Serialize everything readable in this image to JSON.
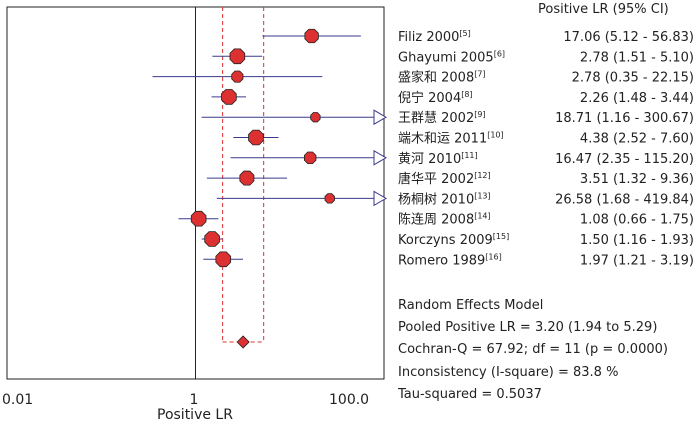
{
  "chart_data": {
    "type": "forest",
    "x_scale": "log10",
    "xlim": [
      0.01,
      100.0
    ],
    "x_ticks": [
      "0.01",
      "1",
      "100.0"
    ],
    "xlabel": "Positive LR",
    "column_header": "Positive LR (95% CI)",
    "studies": [
      {
        "name": "Filiz 2000",
        "ref": "[5]",
        "lr": 17.06,
        "lo": 5.12,
        "hi": 56.83,
        "ci_text": "17.06 (5.12 - 56.83)",
        "arrow": false
      },
      {
        "name": "Ghayumi 2005",
        "ref": "[6]",
        "lr": 2.78,
        "lo": 1.51,
        "hi": 5.1,
        "ci_text": "2.78 (1.51 - 5.10)",
        "arrow": false
      },
      {
        "name": "盛家和 2008",
        "ref": "[7]",
        "lr": 2.78,
        "lo": 0.35,
        "hi": 22.15,
        "ci_text": "2.78 (0.35 - 22.15)",
        "arrow": false
      },
      {
        "name": "倪宁 2004",
        "ref": "[8]",
        "lr": 2.26,
        "lo": 1.48,
        "hi": 3.44,
        "ci_text": "2.26 (1.48 - 3.44)",
        "arrow": false
      },
      {
        "name": "王群慧 2002",
        "ref": "[9]",
        "lr": 18.71,
        "lo": 1.16,
        "hi": 300.67,
        "ci_text": "18.71 (1.16 - 300.67)",
        "arrow": true
      },
      {
        "name": "端木和运 2011",
        "ref": "[10]",
        "lr": 4.38,
        "lo": 2.52,
        "hi": 7.6,
        "ci_text": "4.38 (2.52 - 7.60)",
        "arrow": false
      },
      {
        "name": "黄河 2010",
        "ref": "[11]",
        "lr": 16.47,
        "lo": 2.35,
        "hi": 115.2,
        "ci_text": "16.47 (2.35 - 115.20)",
        "arrow": true
      },
      {
        "name": "唐华平 2002",
        "ref": "[12]",
        "lr": 3.51,
        "lo": 1.32,
        "hi": 9.36,
        "ci_text": "3.51 (1.32 - 9.36)",
        "arrow": false
      },
      {
        "name": "杨桐树 2010",
        "ref": "[13]",
        "lr": 26.58,
        "lo": 1.68,
        "hi": 419.84,
        "ci_text": "26.58 (1.68 - 419.84)",
        "arrow": true
      },
      {
        "name": "陈连周 2008",
        "ref": "[14]",
        "lr": 1.08,
        "lo": 0.66,
        "hi": 1.75,
        "ci_text": "1.08 (0.66 - 1.75)",
        "arrow": false
      },
      {
        "name": "Korczyns 2009",
        "ref": "[15]",
        "lr": 1.5,
        "lo": 1.16,
        "hi": 1.93,
        "ci_text": "1.50 (1.16 - 1.93)",
        "arrow": false
      },
      {
        "name": "Romero 1989",
        "ref": "[16]",
        "lr": 1.97,
        "lo": 1.21,
        "hi": 3.19,
        "ci_text": "1.97 (1.21 - 3.19)",
        "arrow": false
      }
    ],
    "pooled": {
      "lr": 3.2,
      "lo": 1.94,
      "hi": 5.29
    },
    "summary_lines": [
      "Random Effects Model",
      "Pooled Positive LR = 3.20 (1.94 to 5.29)",
      "Cochran-Q = 67.92; df = 11 (p = 0.0000)",
      "Inconsistency (I-square) = 83.8 %",
      "Tau-squared = 0.5037"
    ],
    "colors": {
      "ci_line": "#3a3a8c",
      "point_fill": "#dd3030",
      "point_stroke": "#222222",
      "pooled_ci": "#dd3030",
      "axis": "#222222"
    }
  }
}
